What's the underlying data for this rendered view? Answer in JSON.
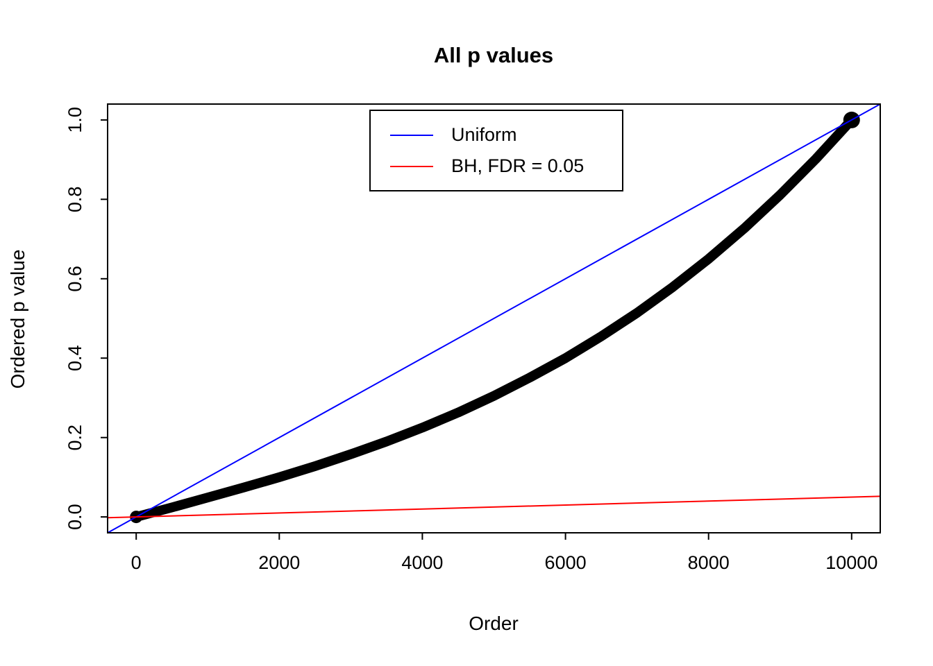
{
  "figure": {
    "background": "#FFFFFF",
    "box_color": "#000000"
  },
  "chart_data": {
    "type": "scatter",
    "title": "All p values",
    "xlabel": "Order",
    "ylabel": "Ordered p value",
    "xlim": [
      -400,
      10400
    ],
    "ylim": [
      -0.04,
      1.04
    ],
    "grid": false,
    "x_ticks": [
      0,
      2000,
      4000,
      6000,
      8000,
      10000
    ],
    "x_tick_labels": [
      "0",
      "2000",
      "4000",
      "6000",
      "8000",
      "10000"
    ],
    "y_ticks": [
      0,
      0.2,
      0.4,
      0.6,
      0.8,
      1
    ],
    "y_tick_labels": [
      "0.0",
      "0.2",
      "0.4",
      "0.6",
      "0.8",
      "1.0"
    ],
    "legend_position": "top-center-inside",
    "series": [
      {
        "name": "Ordered p values",
        "type": "curve",
        "color": "#000000",
        "stroke_width": 14,
        "points": [
          [
            0,
            0.0
          ],
          [
            500,
            0.024
          ],
          [
            1000,
            0.049
          ],
          [
            1500,
            0.074
          ],
          [
            2000,
            0.1
          ],
          [
            2500,
            0.128
          ],
          [
            3000,
            0.158
          ],
          [
            3500,
            0.19
          ],
          [
            4000,
            0.225
          ],
          [
            4500,
            0.263
          ],
          [
            5000,
            0.305
          ],
          [
            5500,
            0.351
          ],
          [
            6000,
            0.4
          ],
          [
            6500,
            0.455
          ],
          [
            7000,
            0.514
          ],
          [
            7500,
            0.579
          ],
          [
            8000,
            0.65
          ],
          [
            8500,
            0.727
          ],
          [
            9000,
            0.811
          ],
          [
            9500,
            0.902
          ],
          [
            10000,
            1.0
          ]
        ]
      },
      {
        "name": "Uniform",
        "type": "abline",
        "color": "#0000FF",
        "stroke_width": 2,
        "intercept": 0,
        "slope": 0.0001
      },
      {
        "name": "BH, FDR = 0.05",
        "type": "abline",
        "color": "#FF0000",
        "stroke_width": 2,
        "intercept": 0,
        "slope": 5e-06
      }
    ],
    "legend": [
      {
        "label": "Uniform",
        "color": "#0000FF"
      },
      {
        "label": "BH, FDR = 0.05",
        "color": "#FF0000"
      }
    ]
  }
}
